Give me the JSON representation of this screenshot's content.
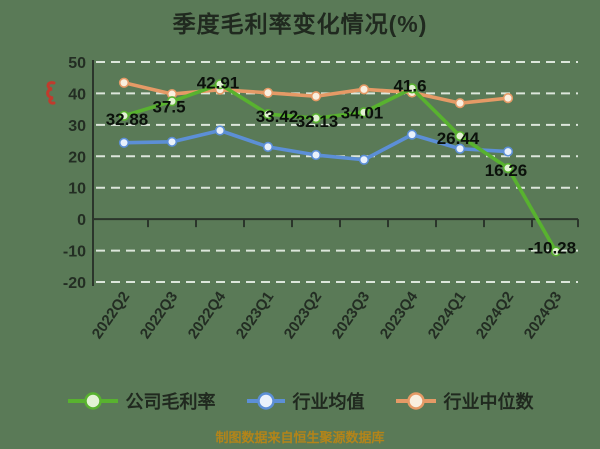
{
  "page": {
    "background_color": "#5a7a57",
    "title": "季度毛利率变化情况(%)",
    "title_color": "#20291f",
    "watermark_icon": "red-seal-stamp",
    "watermark_color": "#c03b2d",
    "footer_note": "制图数据来自恒生聚源数据库",
    "footer_color": "#b38419"
  },
  "chart_data": {
    "type": "line",
    "title": "季度毛利率变化情况(%)",
    "categories": [
      "2022Q2",
      "2022Q3",
      "2022Q4",
      "2023Q1",
      "2023Q2",
      "2023Q3",
      "2023Q4",
      "2024Q1",
      "2024Q2",
      "2024Q3"
    ],
    "series": [
      {
        "name": "公司毛利率",
        "color": "#58b22f",
        "marker_fill": "#e3f2d4",
        "values": [
          32.88,
          37.5,
          42.91,
          33.42,
          32.13,
          34.01,
          41.6,
          26.44,
          16.26,
          -10.28
        ],
        "show_value_labels": true,
        "label_offsets": [
          [
            3,
            3
          ],
          [
            -3,
            5
          ],
          [
            -2,
            -2
          ],
          [
            9,
            2
          ],
          [
            1,
            3
          ],
          [
            -2,
            0
          ],
          [
            -2,
            -3
          ],
          [
            -2,
            2
          ],
          [
            -2,
            2
          ],
          [
            -4,
            -4
          ]
        ]
      },
      {
        "name": "行业均值",
        "color": "#5c8fd6",
        "marker_fill": "#e9f1fb",
        "values": [
          24.3,
          24.6,
          28.2,
          23.0,
          20.4,
          18.9,
          26.9,
          22.4,
          21.5,
          null
        ],
        "show_value_labels": false
      },
      {
        "name": "行业中位数",
        "color": "#e59a66",
        "marker_fill": "#f9efdf",
        "values": [
          43.4,
          39.8,
          41.2,
          40.2,
          39.1,
          41.3,
          40.3,
          36.9,
          38.5,
          null
        ],
        "show_value_labels": false
      }
    ],
    "ylim": [
      -20,
      50
    ],
    "yticks": [
      50,
      40,
      30,
      20,
      10,
      0,
      -10,
      -20
    ],
    "grid": "horizontal-dashed-white",
    "gridline_color": "#e7efe6",
    "axis_color": "#2b352b",
    "tick_label_color": "#232d23",
    "value_label_color": "#0b110b",
    "legend_position": "bottom"
  }
}
